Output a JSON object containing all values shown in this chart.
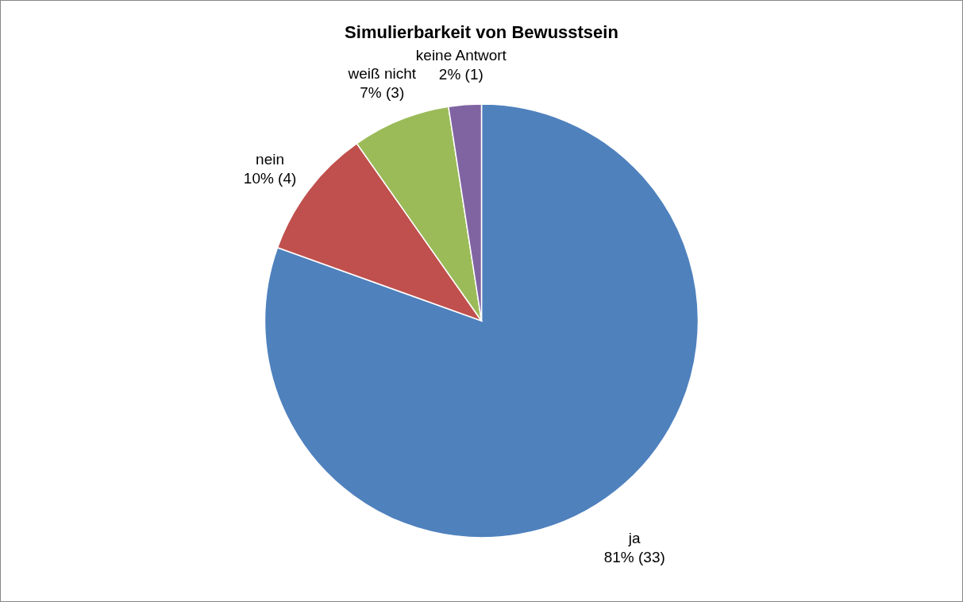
{
  "chart_data": {
    "type": "pie",
    "title": "Simulierbarkeit von Bewusstsein",
    "categories": [
      "ja",
      "nein",
      "weiß nicht",
      "keine Antwort"
    ],
    "values": [
      33,
      4,
      3,
      1
    ],
    "value_labels": [
      "81% (33)",
      "10% (4)",
      "7% (3)",
      "2% (1)"
    ],
    "colors": [
      "#4f81bd",
      "#c0504d",
      "#9bbb59",
      "#8064a2"
    ]
  }
}
